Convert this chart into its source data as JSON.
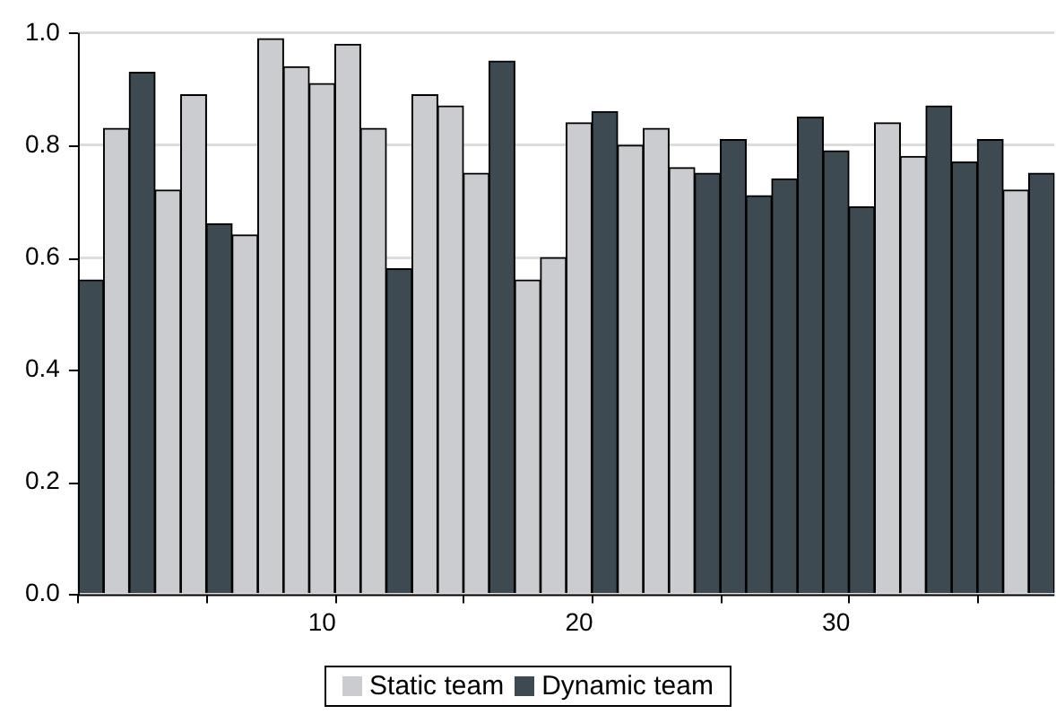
{
  "chart_data": {
    "type": "bar",
    "categories": [
      null,
      null,
      null,
      null,
      null,
      null,
      null,
      null,
      null,
      "10",
      null,
      null,
      null,
      null,
      null,
      null,
      null,
      null,
      null,
      "20",
      null,
      null,
      null,
      null,
      null,
      null,
      null,
      null,
      null,
      "30",
      null,
      null,
      null,
      null,
      null,
      null,
      null,
      null
    ],
    "series": [
      {
        "name": "Static team",
        "color": "#cbccd0",
        "values": [
          null,
          0.83,
          null,
          0.72,
          0.89,
          null,
          0.64,
          0.99,
          0.94,
          0.91,
          0.98,
          0.83,
          null,
          0.89,
          0.87,
          0.75,
          null,
          0.56,
          0.6,
          0.84,
          null,
          0.8,
          0.83,
          0.76,
          null,
          null,
          null,
          null,
          null,
          null,
          null,
          0.84,
          0.78,
          null,
          null,
          null,
          0.72,
          null
        ]
      },
      {
        "name": "Dynamic team",
        "color": "#3e4a51",
        "values": [
          0.56,
          null,
          0.93,
          null,
          null,
          0.66,
          null,
          null,
          null,
          null,
          null,
          null,
          0.58,
          null,
          null,
          null,
          0.95,
          null,
          null,
          null,
          0.86,
          null,
          null,
          null,
          0.75,
          0.81,
          0.71,
          0.74,
          0.85,
          0.79,
          0.69,
          null,
          null,
          0.87,
          0.77,
          0.81,
          null,
          0.75
        ]
      }
    ],
    "ylim": [
      0,
      1.0
    ],
    "yticks": [
      {
        "value": 0,
        "label": "0.0"
      },
      {
        "value": 0.2,
        "label": "0.2"
      },
      {
        "value": 0.4,
        "label": "0.4"
      },
      {
        "value": 0.6,
        "label": "0.6"
      },
      {
        "value": 0.8,
        "label": "0.8"
      },
      {
        "value": 1.0,
        "label": "1.0"
      }
    ],
    "grid": "y",
    "legend": "bottom"
  }
}
